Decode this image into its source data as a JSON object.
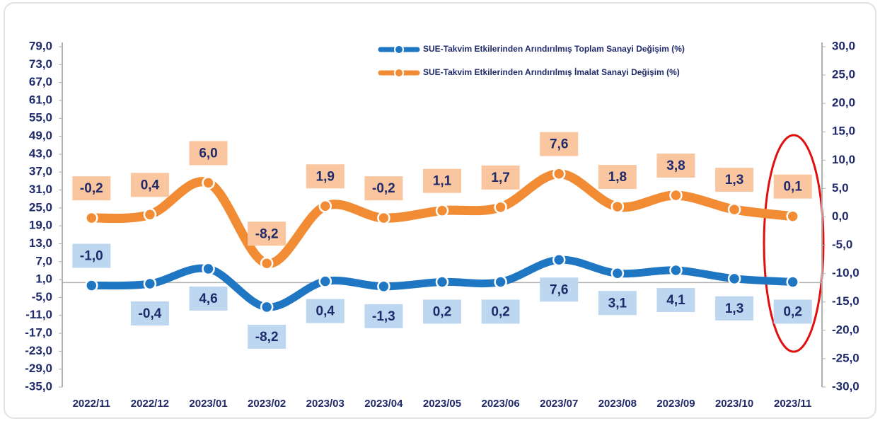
{
  "chart_data": {
    "type": "line",
    "categories": [
      "2022/11",
      "2022/12",
      "2023/01",
      "2023/02",
      "2023/03",
      "2023/04",
      "2023/05",
      "2023/06",
      "2023/07",
      "2023/08",
      "2023/09",
      "2023/10",
      "2023/11"
    ],
    "series": [
      {
        "name": "SUE-Takvim Etkilerinden Arındırılmış Toplam Sanayi Değişim (%)",
        "color": "#1f77c4",
        "axis": "y",
        "values": [
          -1.0,
          -0.4,
          4.6,
          -8.2,
          0.4,
          -1.3,
          0.2,
          0.2,
          7.6,
          3.1,
          4.1,
          1.3,
          0.2
        ],
        "value_labels": [
          "-1,0",
          "-0,4",
          "4,6",
          "-8,2",
          "0,4",
          "-1,3",
          "0,2",
          "0,2",
          "7,6",
          "3,1",
          "4,1",
          "1,3",
          "0,2"
        ]
      },
      {
        "name": "SUE-Takvim Etkilerinden Arındırılmış İmalat Sanayi Değişim (%)",
        "color": "#f28c34",
        "axis": "y2",
        "values": [
          -0.2,
          0.4,
          6.0,
          -8.2,
          1.9,
          -0.2,
          1.1,
          1.7,
          7.6,
          1.8,
          3.8,
          1.3,
          0.1
        ],
        "value_labels": [
          "-0,2",
          "0,4",
          "6,0",
          "-8,2",
          "1,9",
          "-0,2",
          "1,1",
          "1,7",
          "7,6",
          "1,8",
          "3,8",
          "1,3",
          "0,1"
        ]
      }
    ],
    "ylim": [
      -35,
      79
    ],
    "yticks": [
      {
        "value": 79,
        "label": "79,0"
      },
      {
        "value": 73,
        "label": "73,0"
      },
      {
        "value": 67,
        "label": "67,0"
      },
      {
        "value": 61,
        "label": "61,0"
      },
      {
        "value": 55,
        "label": "55,0"
      },
      {
        "value": 49,
        "label": "49,0"
      },
      {
        "value": 43,
        "label": "43,0"
      },
      {
        "value": 37,
        "label": "37,0"
      },
      {
        "value": 31,
        "label": "31,0"
      },
      {
        "value": 25,
        "label": "25,0"
      },
      {
        "value": 19,
        "label": "19,0"
      },
      {
        "value": 13,
        "label": "13,0"
      },
      {
        "value": 7,
        "label": "7,0"
      },
      {
        "value": 1,
        "label": "1,0"
      },
      {
        "value": -5,
        "label": "-5,0"
      },
      {
        "value": -11,
        "label": "-11,0"
      },
      {
        "value": -17,
        "label": "-17,0"
      },
      {
        "value": -23,
        "label": "-23,0"
      },
      {
        "value": -29,
        "label": "-29,0"
      },
      {
        "value": -35,
        "label": "-35,0"
      }
    ],
    "y2lim": [
      -30,
      30
    ],
    "y2ticks": [
      {
        "value": 30,
        "label": "30,0"
      },
      {
        "value": 25,
        "label": "25,0"
      },
      {
        "value": 20,
        "label": "20,0"
      },
      {
        "value": 15,
        "label": "15,0"
      },
      {
        "value": 10,
        "label": "10,0"
      },
      {
        "value": 5,
        "label": "5,0"
      },
      {
        "value": 0,
        "label": "0,0"
      },
      {
        "value": -5,
        "label": "-5,0"
      },
      {
        "value": -10,
        "label": "-10,0"
      },
      {
        "value": -15,
        "label": "-15,0"
      },
      {
        "value": -20,
        "label": "-20,0"
      },
      {
        "value": -25,
        "label": "-25,0"
      },
      {
        "value": -30,
        "label": "-30,0"
      }
    ],
    "legend": "top"
  }
}
